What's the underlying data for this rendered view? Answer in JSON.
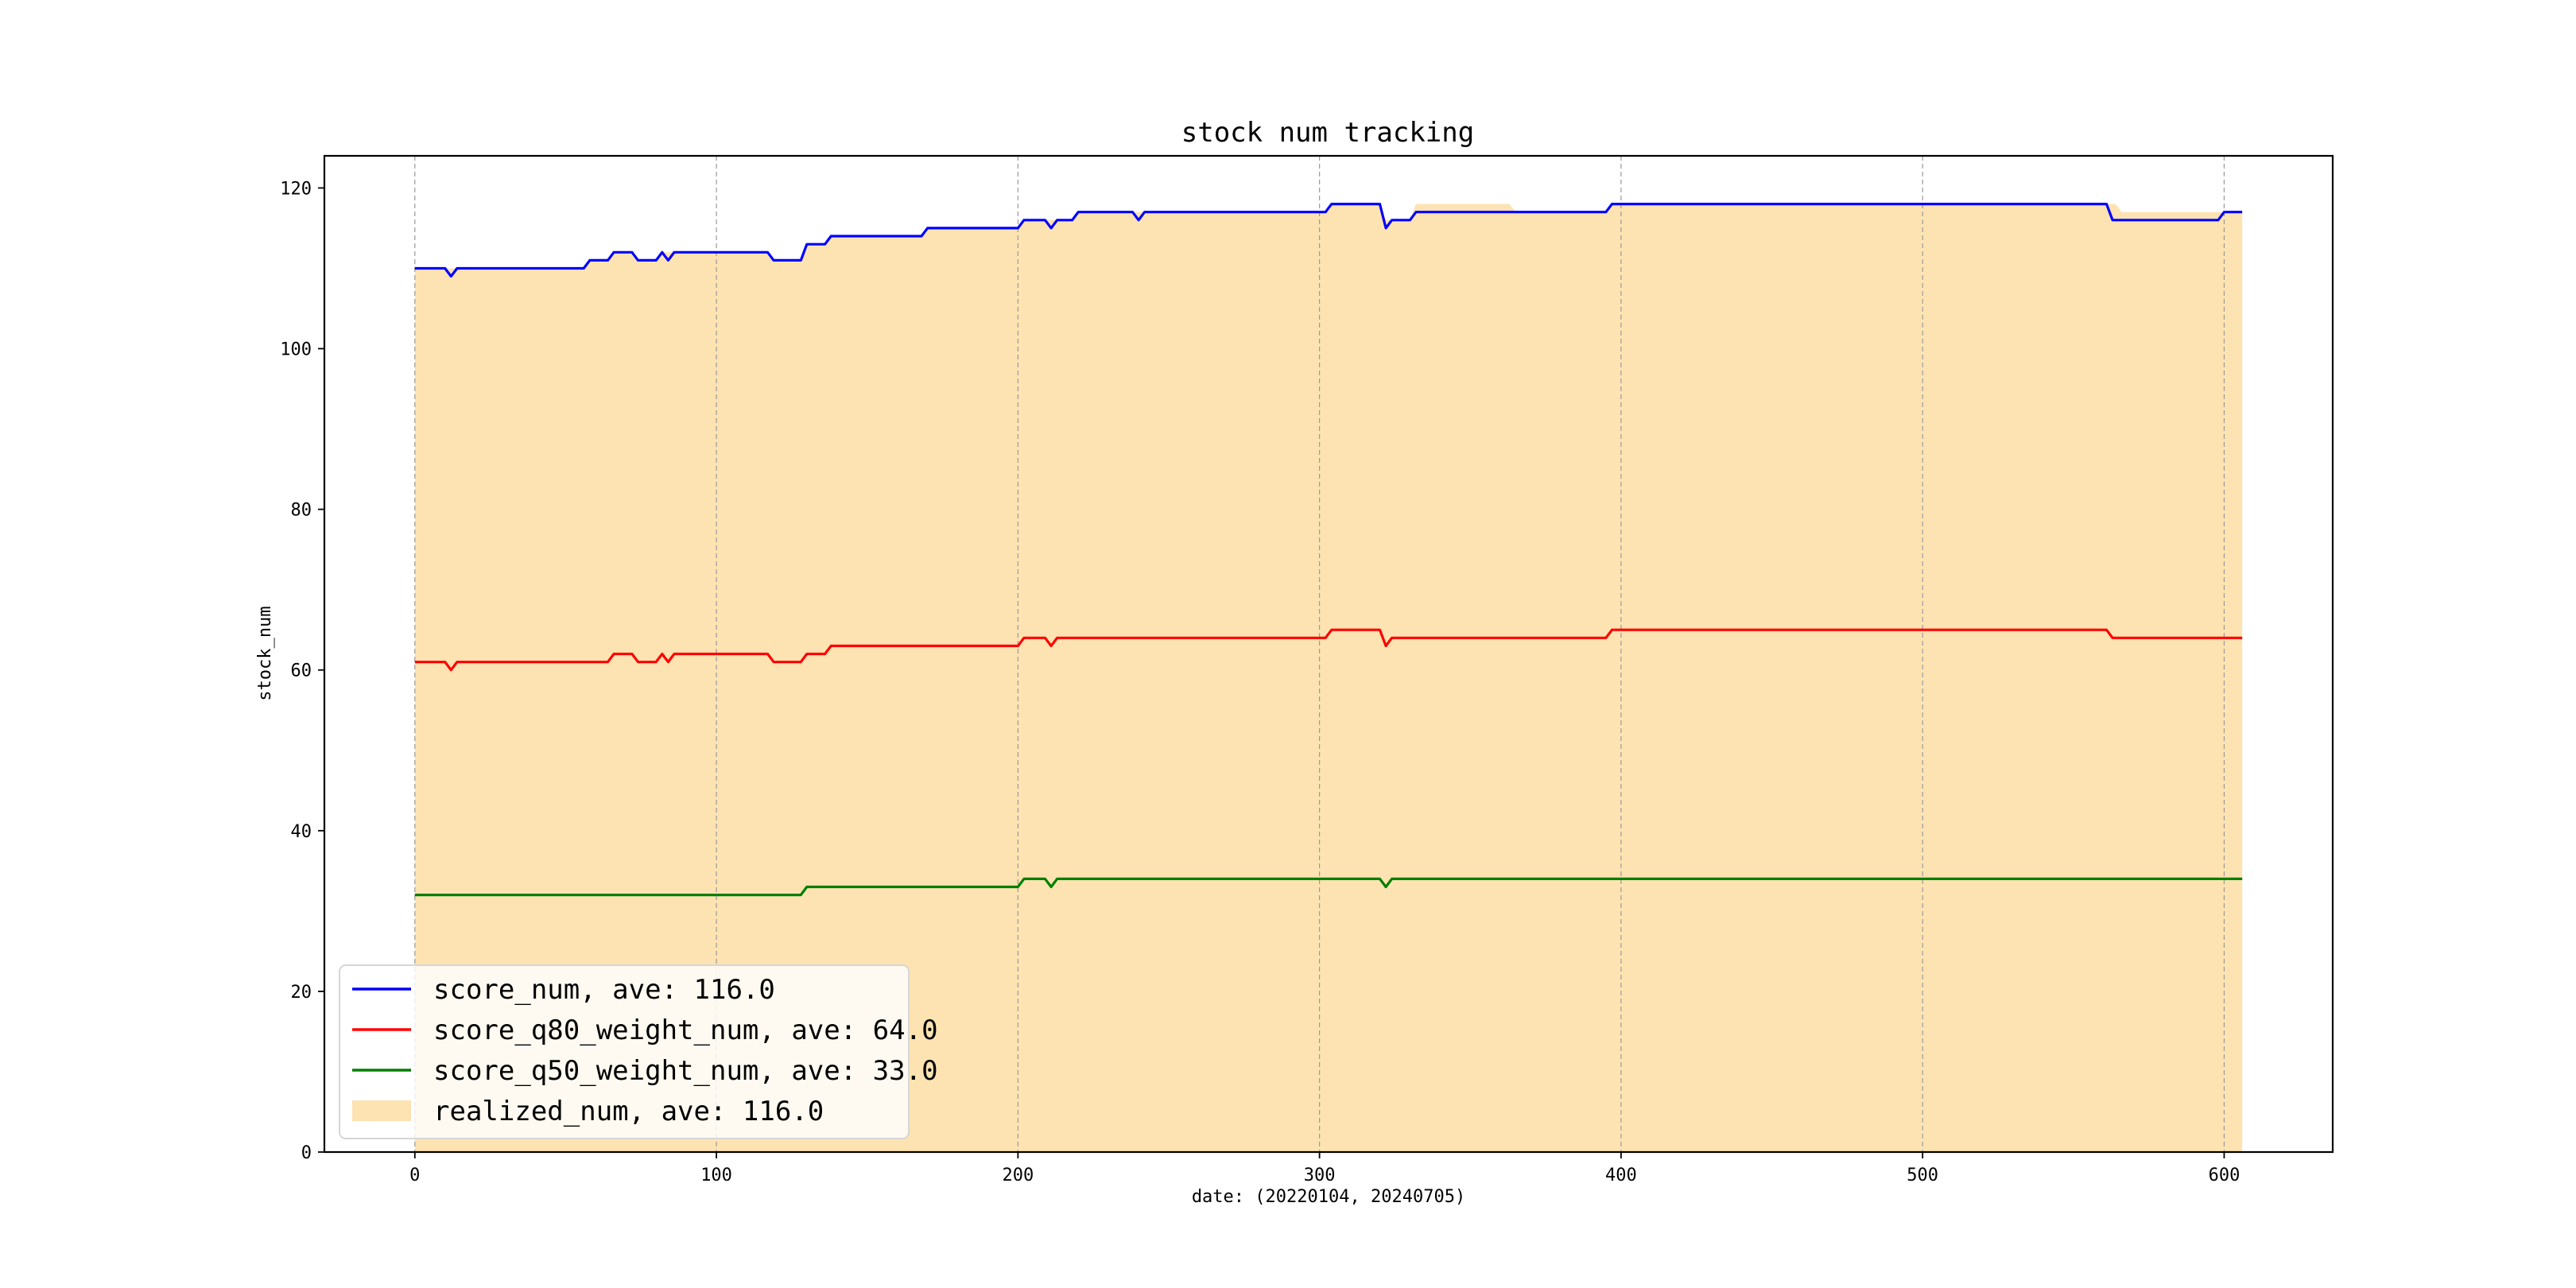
{
  "chart_data": {
    "type": "line",
    "title": "stock num tracking",
    "xlabel": "date: (20220104, 20240705)",
    "ylabel": "stock_num",
    "xlim": [
      -30,
      636
    ],
    "ylim": [
      0,
      124
    ],
    "xticks": [
      0,
      100,
      200,
      300,
      400,
      500,
      600
    ],
    "yticks": [
      0,
      20,
      40,
      60,
      80,
      100,
      120
    ],
    "grid": {
      "x": true,
      "y": false,
      "style": "dashed"
    },
    "legend_position": "lower-left",
    "series": [
      {
        "name": "score_num, ave: 116.0",
        "kind": "line",
        "color": "#0000ff",
        "points": [
          [
            0,
            110
          ],
          [
            10,
            110
          ],
          [
            12,
            109
          ],
          [
            14,
            110
          ],
          [
            56,
            110
          ],
          [
            58,
            111
          ],
          [
            64,
            111
          ],
          [
            66,
            112
          ],
          [
            72,
            112
          ],
          [
            74,
            111
          ],
          [
            80,
            111
          ],
          [
            82,
            112
          ],
          [
            84,
            111
          ],
          [
            86,
            112
          ],
          [
            117,
            112
          ],
          [
            119,
            111
          ],
          [
            128,
            111
          ],
          [
            130,
            113
          ],
          [
            136,
            113
          ],
          [
            138,
            114
          ],
          [
            168,
            114
          ],
          [
            170,
            115
          ],
          [
            200,
            115
          ],
          [
            202,
            116
          ],
          [
            209,
            116
          ],
          [
            211,
            115
          ],
          [
            213,
            116
          ],
          [
            218,
            116
          ],
          [
            220,
            117
          ],
          [
            238,
            117
          ],
          [
            240,
            116
          ],
          [
            242,
            117
          ],
          [
            302,
            117
          ],
          [
            304,
            118
          ],
          [
            320,
            118
          ],
          [
            322,
            115
          ],
          [
            324,
            116
          ],
          [
            330,
            116
          ],
          [
            332,
            117
          ],
          [
            395,
            117
          ],
          [
            397,
            118
          ],
          [
            561,
            118
          ],
          [
            563,
            116
          ],
          [
            598,
            116
          ],
          [
            600,
            117
          ],
          [
            606,
            117
          ]
        ]
      },
      {
        "name": "score_q80_weight_num, ave: 64.0",
        "kind": "line",
        "color": "#ff0000",
        "points": [
          [
            0,
            61
          ],
          [
            10,
            61
          ],
          [
            12,
            60
          ],
          [
            14,
            61
          ],
          [
            64,
            61
          ],
          [
            66,
            62
          ],
          [
            72,
            62
          ],
          [
            74,
            61
          ],
          [
            80,
            61
          ],
          [
            82,
            62
          ],
          [
            84,
            61
          ],
          [
            86,
            62
          ],
          [
            117,
            62
          ],
          [
            119,
            61
          ],
          [
            128,
            61
          ],
          [
            130,
            62
          ],
          [
            136,
            62
          ],
          [
            138,
            63
          ],
          [
            200,
            63
          ],
          [
            202,
            64
          ],
          [
            209,
            64
          ],
          [
            211,
            63
          ],
          [
            213,
            64
          ],
          [
            302,
            64
          ],
          [
            304,
            65
          ],
          [
            320,
            65
          ],
          [
            322,
            63
          ],
          [
            324,
            64
          ],
          [
            395,
            64
          ],
          [
            397,
            65
          ],
          [
            561,
            65
          ],
          [
            563,
            64
          ],
          [
            606,
            64
          ]
        ]
      },
      {
        "name": "score_q50_weight_num, ave: 33.0",
        "kind": "line",
        "color": "#008000",
        "points": [
          [
            0,
            32
          ],
          [
            128,
            32
          ],
          [
            130,
            33
          ],
          [
            200,
            33
          ],
          [
            202,
            34
          ],
          [
            209,
            34
          ],
          [
            211,
            33
          ],
          [
            213,
            34
          ],
          [
            320,
            34
          ],
          [
            322,
            33
          ],
          [
            324,
            34
          ],
          [
            606,
            34
          ]
        ]
      },
      {
        "name": "realized_num, ave: 116.0",
        "kind": "area",
        "color": "#fde3b2",
        "points": [
          [
            0,
            110
          ],
          [
            56,
            110
          ],
          [
            58,
            111
          ],
          [
            64,
            111
          ],
          [
            66,
            112
          ],
          [
            72,
            112
          ],
          [
            74,
            111
          ],
          [
            80,
            111
          ],
          [
            82,
            112
          ],
          [
            117,
            112
          ],
          [
            119,
            111
          ],
          [
            128,
            111
          ],
          [
            130,
            113
          ],
          [
            136,
            113
          ],
          [
            138,
            114
          ],
          [
            168,
            114
          ],
          [
            170,
            115
          ],
          [
            200,
            115
          ],
          [
            202,
            116
          ],
          [
            218,
            116
          ],
          [
            220,
            117
          ],
          [
            302,
            117
          ],
          [
            304,
            118
          ],
          [
            320,
            118
          ],
          [
            322,
            116
          ],
          [
            330,
            116
          ],
          [
            332,
            118
          ],
          [
            363,
            118
          ],
          [
            365,
            117
          ],
          [
            395,
            117
          ],
          [
            397,
            118
          ],
          [
            564,
            118
          ],
          [
            566,
            117
          ],
          [
            606,
            117
          ]
        ]
      }
    ]
  }
}
